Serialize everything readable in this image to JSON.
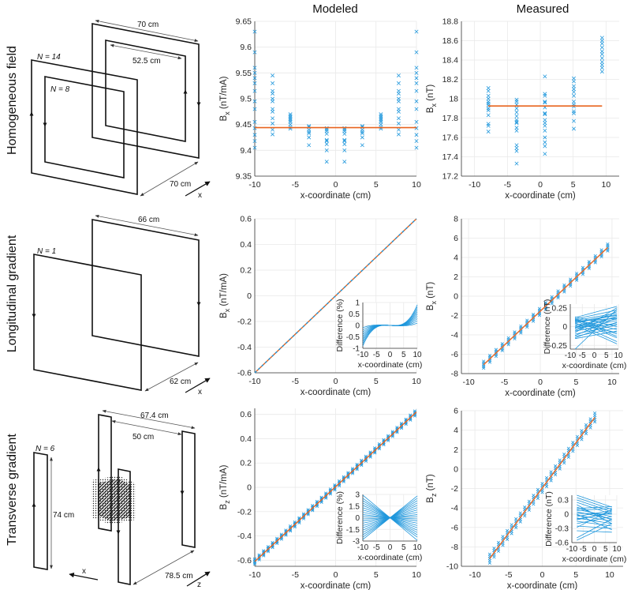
{
  "columns": {
    "modeled": "Modeled",
    "measured": "Measured"
  },
  "rows": {
    "homogeneous": "Homogeneous field",
    "longitudinal": "Longitudinal gradient",
    "transverse": "Transverse gradient"
  },
  "diagrams": {
    "homogeneous": {
      "n_outer": "N = 14",
      "n_inner": "N = 8",
      "width_outer": "70 cm",
      "width_inner": "52.5 cm",
      "separation": "70 cm",
      "axis": "x"
    },
    "longitudinal": {
      "n": "N = 1",
      "width": "66 cm",
      "separation": "62 cm",
      "axis": "x"
    },
    "transverse": {
      "n": "N = 6",
      "height": "74 cm",
      "outer_span": "67.4 cm",
      "inner_span": "50 cm",
      "separation": "78.5 cm",
      "axis_x": "x",
      "axis_z": "z"
    }
  },
  "colors": {
    "data": "#1f97dc",
    "fit": "#e8641f",
    "grid": "#e9e9e9",
    "axis": "#333333"
  },
  "chart_data": [
    {
      "id": "homog-modeled",
      "type": "scatter",
      "xlabel": "x-coordinate (cm)",
      "ylabel": {
        "main": "B",
        "sub": "x",
        "unit": " (nT/mA)"
      },
      "xlim": [
        -10,
        10
      ],
      "xticks": [
        -10,
        -5,
        0,
        5,
        10
      ],
      "ylim": [
        9.35,
        9.65
      ],
      "yticks": [
        9.35,
        9.4,
        9.45,
        9.5,
        9.55,
        9.6,
        9.65
      ],
      "ytick_labels": [
        "9.35",
        "9.4",
        "9.45",
        "9.5",
        "9.55",
        "9.6",
        "9.65"
      ],
      "columns": [
        {
          "x": -10,
          "y": [
            9.63,
            9.59,
            9.56,
            9.55,
            9.54,
            9.53,
            9.515,
            9.495,
            9.48,
            9.455,
            9.443,
            9.43,
            9.418,
            9.405
          ]
        },
        {
          "x": -7.8,
          "y": [
            9.545,
            9.53,
            9.515,
            9.51,
            9.5,
            9.495,
            9.48,
            9.475,
            9.462,
            9.452,
            9.44,
            9.431
          ]
        },
        {
          "x": -5.6,
          "y": [
            9.47,
            9.467,
            9.464,
            9.461,
            9.458,
            9.455,
            9.45,
            9.445,
            9.442
          ]
        },
        {
          "x": -3.3,
          "y": [
            9.447,
            9.445,
            9.44,
            9.436,
            9.433,
            9.425,
            9.41
          ]
        },
        {
          "x": -1.1,
          "y": [
            9.443,
            9.44,
            9.437,
            9.432,
            9.42,
            9.418,
            9.412,
            9.4,
            9.378
          ]
        },
        {
          "x": 1.1,
          "y": [
            9.443,
            9.44,
            9.437,
            9.432,
            9.42,
            9.418,
            9.412,
            9.4,
            9.378
          ]
        },
        {
          "x": 3.3,
          "y": [
            9.447,
            9.445,
            9.44,
            9.436,
            9.433,
            9.425,
            9.41
          ]
        },
        {
          "x": 5.6,
          "y": [
            9.47,
            9.467,
            9.464,
            9.461,
            9.458,
            9.455,
            9.45,
            9.445,
            9.442
          ]
        },
        {
          "x": 7.8,
          "y": [
            9.545,
            9.53,
            9.515,
            9.51,
            9.5,
            9.495,
            9.48,
            9.475,
            9.462,
            9.452,
            9.44,
            9.431
          ]
        },
        {
          "x": 10,
          "y": [
            9.63,
            9.59,
            9.56,
            9.55,
            9.54,
            9.53,
            9.515,
            9.495,
            9.48,
            9.455,
            9.443,
            9.43,
            9.418,
            9.405
          ]
        }
      ],
      "mean_line": {
        "y": 9.444,
        "x": [
          -10,
          10
        ]
      }
    },
    {
      "id": "homog-measured",
      "type": "scatter",
      "xlabel": "x-coordinate (cm)",
      "ylabel": {
        "main": "B",
        "sub": "x",
        "unit": " (nT)"
      },
      "xlim": [
        -12,
        12
      ],
      "xticks": [
        -10,
        -5,
        0,
        5,
        10
      ],
      "ylim": [
        17.2,
        18.8
      ],
      "yticks": [
        17.2,
        17.4,
        17.6,
        17.8,
        18,
        18.2,
        18.4,
        18.6,
        18.8
      ],
      "ytick_labels": [
        "17.2",
        "17.4",
        "17.6",
        "17.8",
        "18",
        "18.2",
        "18.4",
        "18.6",
        "18.8"
      ],
      "columns": [
        {
          "x": -7.9,
          "y": [
            18.11,
            18.08,
            18.03,
            18.0,
            17.97,
            17.95,
            17.93,
            17.9,
            17.88,
            17.83,
            17.74,
            17.72,
            17.66
          ]
        },
        {
          "x": -3.6,
          "y": [
            17.99,
            17.97,
            17.94,
            17.9,
            17.86,
            17.82,
            17.78,
            17.76,
            17.75,
            17.7,
            17.67,
            17.52,
            17.49,
            17.46,
            17.33
          ]
        },
        {
          "x": 0.7,
          "y": [
            18.23,
            18.05,
            18.03,
            17.97,
            17.96,
            17.91,
            17.85,
            17.84,
            17.78,
            17.75,
            17.72,
            17.67,
            17.6,
            17.55,
            17.51,
            17.43
          ]
        },
        {
          "x": 5.1,
          "y": [
            18.21,
            18.18,
            18.13,
            18.1,
            18.07,
            18.03,
            17.97,
            17.94,
            17.92,
            17.87,
            17.85,
            17.77,
            17.69
          ]
        },
        {
          "x": 9.4,
          "y": [
            18.63,
            18.6,
            18.57,
            18.53,
            18.49,
            18.46,
            18.42,
            18.38,
            18.35,
            18.32,
            18.28
          ]
        }
      ],
      "mean_line": {
        "y": 17.925,
        "x": [
          -7.9,
          9.4
        ]
      }
    },
    {
      "id": "long-modeled",
      "type": "line",
      "xlabel": "x-coordinate (cm)",
      "ylabel": {
        "main": "B",
        "sub": "x",
        "unit": " (nT/mA)"
      },
      "xlim": [
        -10,
        10
      ],
      "xticks": [
        -10,
        -5,
        0,
        5,
        10
      ],
      "ylim": [
        -0.6,
        0.6
      ],
      "yticks": [
        -0.6,
        -0.4,
        -0.2,
        0,
        0.2,
        0.4,
        0.6
      ],
      "ytick_labels": [
        "-0.6",
        "-0.4",
        "-0.2",
        "0",
        "0.2",
        "0.4",
        "0.6"
      ],
      "fit": {
        "slope": 0.06,
        "intercept": 0,
        "x": [
          -10,
          10
        ]
      },
      "stations": {
        "start": -10,
        "step": 0.5,
        "count": 41,
        "spread": 0.003
      },
      "inset": {
        "type": "line",
        "xlabel": "x-coordinate (cm)",
        "ylabel": "Difference (%)",
        "xlim": [
          -10,
          10
        ],
        "xticks": [
          -10,
          -5,
          0,
          5,
          10
        ],
        "ylim": [
          -1,
          1
        ],
        "yticks": [
          -1,
          -0.5,
          0,
          0.5,
          1
        ],
        "ytick_labels": [
          "-1",
          "-0.5",
          "0",
          "0.5",
          "1"
        ],
        "cubic_end_values": [
          0.1,
          0.2,
          0.3,
          0.4,
          0.5,
          0.6,
          0.7,
          0.8,
          0.9
        ],
        "linear_term": -0.08
      }
    },
    {
      "id": "long-measured",
      "type": "scatter",
      "xlabel": "x-coordinate (cm)",
      "ylabel": {
        "main": "B",
        "sub": "x",
        "unit": " (nT)"
      },
      "xlim": [
        -11,
        11
      ],
      "xticks": [
        -10,
        -5,
        0,
        5,
        10
      ],
      "ylim": [
        -8,
        8
      ],
      "yticks": [
        -8,
        -6,
        -4,
        -2,
        0,
        2,
        4,
        6,
        8
      ],
      "ytick_labels": [
        "-8",
        "-6",
        "-4",
        "-2",
        "0",
        "2",
        "4",
        "6",
        "8"
      ],
      "fit": {
        "slope": 0.7,
        "intercept": -1.55,
        "x": [
          -7.9,
          9.4
        ]
      },
      "stations": {
        "start": -7.9,
        "step": 0.865,
        "count": 21,
        "spread": 0.35
      },
      "inset": {
        "type": "line",
        "xlabel": "x-coordinate (cm)",
        "ylabel": "Difference (nT)",
        "xlim": [
          -10,
          10
        ],
        "xticks": [
          -10,
          -5,
          0,
          5,
          10
        ],
        "ylim": [
          -0.3,
          0.3
        ],
        "yticks": [
          -0.25,
          0,
          0.25
        ],
        "ytick_labels": [
          "-0.25",
          "0",
          "0.25"
        ],
        "x_ends": [
          -8,
          9.4
        ],
        "segments": [
          [
            0.12,
            0.27
          ],
          [
            0.1,
            0.22
          ],
          [
            0.08,
            0.18
          ],
          [
            0.05,
            0.15
          ],
          [
            0.02,
            0.12
          ],
          [
            0.0,
            0.1
          ],
          [
            -0.03,
            0.08
          ],
          [
            -0.06,
            0.05
          ],
          [
            -0.1,
            0.02
          ],
          [
            -0.13,
            -0.02
          ],
          [
            -0.16,
            -0.06
          ],
          [
            0.11,
            -0.1
          ],
          [
            0.08,
            -0.15
          ],
          [
            0.05,
            -0.2
          ],
          [
            0.02,
            -0.23
          ],
          [
            -0.02,
            0.2
          ],
          [
            -0.05,
            0.14
          ],
          [
            0.13,
            0.0
          ],
          [
            0.09,
            -0.04
          ],
          [
            -0.08,
            0.25
          ],
          [
            -0.12,
            0.12
          ],
          [
            0.04,
            -0.08
          ],
          [
            -0.15,
            0.06
          ],
          [
            0.06,
            0.16
          ],
          [
            -0.3,
            0.23
          ],
          [
            0.1,
            -0.13
          ],
          [
            -0.01,
            0.03
          ],
          [
            0.07,
            0.11
          ]
        ]
      }
    },
    {
      "id": "trans-modeled",
      "type": "scatter",
      "xlabel": "x-coordinate (cm)",
      "ylabel": {
        "main": "B",
        "sub": "z",
        "unit": " (nT/mA)"
      },
      "xlim": [
        -10,
        10
      ],
      "xticks": [
        -10,
        -5,
        0,
        5,
        10
      ],
      "ylim": [
        -0.65,
        0.65
      ],
      "yticks": [
        -0.6,
        -0.4,
        -0.2,
        0,
        0.2,
        0.4,
        0.6
      ],
      "ytick_labels": [
        "-0.6",
        "-0.4",
        "-0.2",
        "0",
        "0.2",
        "0.4",
        "0.6"
      ],
      "fit": {
        "slope": 0.0615,
        "intercept": 0.005,
        "x": [
          -10,
          10
        ]
      },
      "stations": {
        "start": -10,
        "step": 0.55,
        "count": 37,
        "spread": 0.02
      },
      "inset": {
        "type": "line",
        "xlabel": "x-coordinate (cm)",
        "ylabel": "Difference (%)",
        "xlim": [
          -10,
          10
        ],
        "xticks": [
          -10,
          -5,
          0,
          5,
          10
        ],
        "ylim": [
          -3,
          3
        ],
        "yticks": [
          -3,
          -1.5,
          0,
          1.5,
          3
        ],
        "ytick_labels": [
          "-3",
          "-1.5",
          "0",
          "1.5",
          "3"
        ],
        "end_values": [
          -2.9,
          -2.5,
          -2.2,
          -1.9,
          -1.6,
          -1.3,
          -1.0,
          -0.7,
          -0.4,
          -0.15,
          0.15,
          0.4,
          0.7,
          1.0,
          1.3,
          1.6,
          1.9,
          2.2,
          2.5,
          2.8
        ]
      }
    },
    {
      "id": "trans-measured",
      "type": "scatter",
      "xlabel": "x-coordinate (cm)",
      "ylabel": {
        "main": "B",
        "sub": "z",
        "unit": " (nT)"
      },
      "xlim": [
        -12,
        12
      ],
      "xticks": [
        -10,
        -5,
        0,
        5,
        10
      ],
      "ylim": [
        -10,
        6
      ],
      "yticks": [
        -10,
        -8,
        -6,
        -4,
        -2,
        0,
        2,
        4,
        6
      ],
      "ytick_labels": [
        "-10",
        "-8",
        "-6",
        "-4",
        "-2",
        "0",
        "2",
        "4",
        "6"
      ],
      "fit": {
        "slope": 0.93,
        "intercept": -1.95,
        "x": [
          -7.8,
          7.8
        ]
      },
      "stations": {
        "start": -7.8,
        "step": 0.65,
        "count": 25,
        "spread": 0.45
      },
      "inset": {
        "type": "line",
        "xlabel": "x-coordinate (cm)",
        "ylabel": "Difference (nT)",
        "xlim": [
          -10,
          10
        ],
        "xticks": [
          -10,
          -5,
          0,
          5,
          10
        ],
        "ylim": [
          -0.6,
          0.4
        ],
        "yticks": [
          -0.6,
          -0.3,
          0,
          0.3
        ],
        "ytick_labels": [
          "-0.6",
          "-0.3",
          "0",
          "0.3"
        ],
        "x_ends": [
          -7.8,
          7.8
        ],
        "segments": [
          [
            0.4,
            0.15
          ],
          [
            0.35,
            0.1
          ],
          [
            0.3,
            0.05
          ],
          [
            0.25,
            0.0
          ],
          [
            0.12,
            0.16
          ],
          [
            0.1,
            -0.05
          ],
          [
            0.08,
            0.12
          ],
          [
            0.05,
            -0.1
          ],
          [
            0.02,
            0.0
          ],
          [
            -0.02,
            -0.15
          ],
          [
            -0.05,
            0.08
          ],
          [
            -0.08,
            -0.2
          ],
          [
            -0.12,
            0.05
          ],
          [
            -0.15,
            -0.25
          ],
          [
            -0.2,
            -0.05
          ],
          [
            -0.25,
            -0.3
          ],
          [
            -0.28,
            0.1
          ],
          [
            -0.35,
            -0.38
          ],
          [
            -0.5,
            -0.1
          ],
          [
            -0.55,
            -0.2
          ],
          [
            0.15,
            -0.12
          ],
          [
            -0.1,
            0.02
          ],
          [
            0.0,
            -0.33
          ],
          [
            0.2,
            -0.2
          ]
        ]
      }
    }
  ]
}
